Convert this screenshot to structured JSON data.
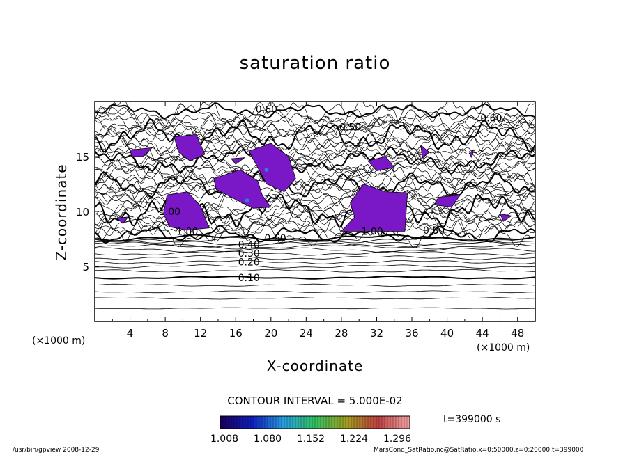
{
  "chart_data": {
    "type": "contour",
    "title": "saturation ratio",
    "xlabel": "X-coordinate",
    "ylabel": "Z-coordinate",
    "x_unit_label": "(×1000 m)",
    "xlim": [
      0,
      50
    ],
    "ylim": [
      0,
      20
    ],
    "x_ticks": [
      4,
      8,
      12,
      16,
      20,
      24,
      28,
      32,
      36,
      40,
      44,
      48
    ],
    "y_ticks": [
      5,
      10,
      15
    ],
    "contour_interval": "CONTOUR INTERVAL = 5.000E-02",
    "contour_labels": [
      {
        "text": "0.10",
        "x": 17.5,
        "z": 4.0
      },
      {
        "text": "0.20",
        "x": 17.5,
        "z": 5.4
      },
      {
        "text": "0.30",
        "x": 17.5,
        "z": 6.2
      },
      {
        "text": "0.40",
        "x": 17.5,
        "z": 7.0
      },
      {
        "text": "0.60",
        "x": 20.5,
        "z": 7.6
      },
      {
        "text": "1.00",
        "x": 10.5,
        "z": 8.2
      },
      {
        "text": "1.00",
        "x": 8.5,
        "z": 10.0
      },
      {
        "text": "1.00",
        "x": 31.5,
        "z": 8.2
      },
      {
        "text": "0.80",
        "x": 38.5,
        "z": 8.3
      },
      {
        "text": "0.50",
        "x": 29.0,
        "z": 17.7
      },
      {
        "text": "0.60",
        "x": 45.0,
        "z": 18.5
      },
      {
        "text": "0.60",
        "x": 19.5,
        "z": 19.3
      }
    ],
    "colorbar": {
      "ticks": [
        "1.008",
        "1.080",
        "1.152",
        "1.224",
        "1.296"
      ],
      "colors": [
        "#1a0060",
        "#1020c0",
        "#28a0e0",
        "#30c060",
        "#a0a020",
        "#c04040",
        "#f0a0a0"
      ]
    },
    "fill_color": "#7a18c8",
    "time": "t=399000 s",
    "footer_left": "/usr/bin/gpview   2008-12-29",
    "footer_right": "MarsCond_SatRatio.nc@SatRatio,x=0:50000,z=0:20000,t=399000"
  }
}
